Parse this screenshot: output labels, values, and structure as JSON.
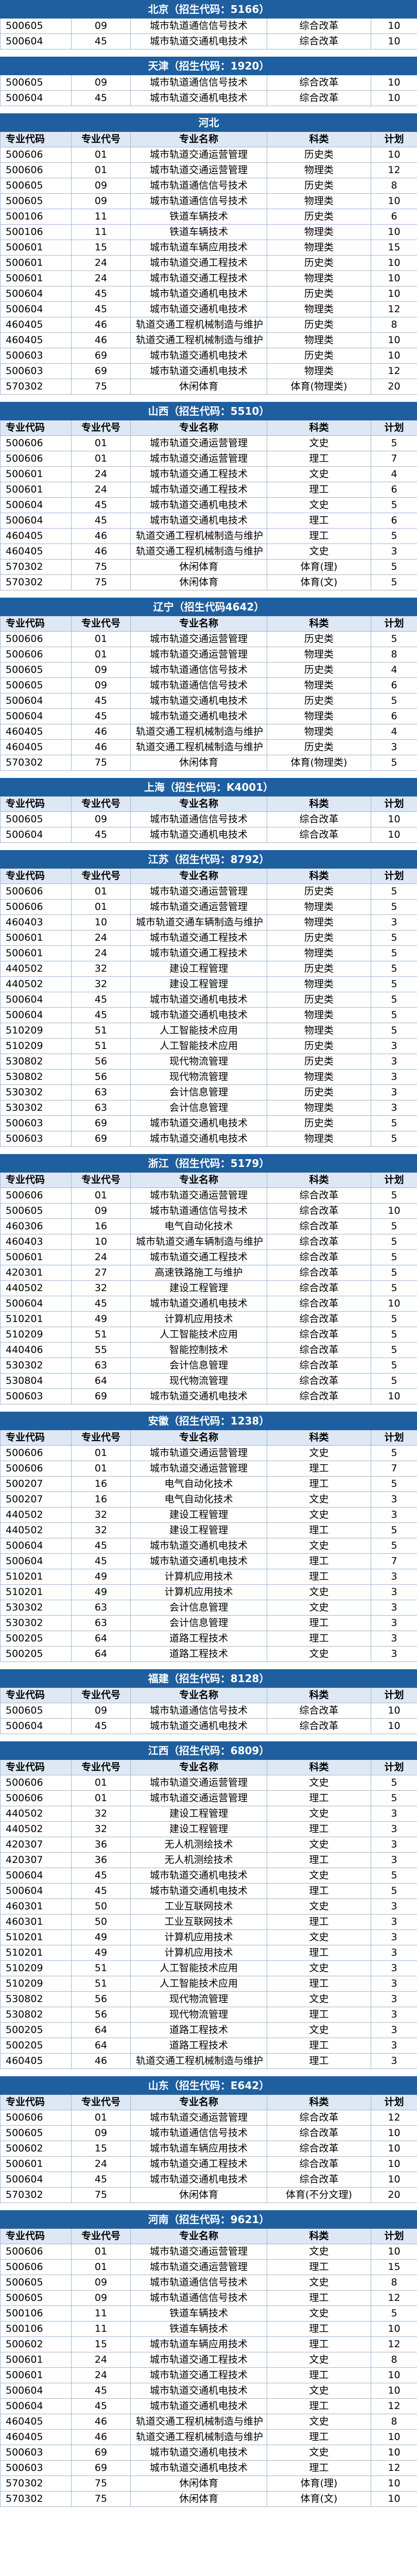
{
  "columns": [
    "专业代码",
    "专业代号",
    "专业名称",
    "科类",
    "计划"
  ],
  "sections": [
    {
      "title": "北京（招生代码：5166）",
      "header": false,
      "rows": [
        [
          "500605",
          "09",
          "城市轨道通信信号技术",
          "综合改革",
          "10"
        ],
        [
          "500604",
          "45",
          "城市轨道交通机电技术",
          "综合改革",
          "10"
        ]
      ]
    },
    {
      "title": "天津（招生代码：1920）",
      "header": false,
      "rows": [
        [
          "500605",
          "09",
          "城市轨道通信信号技术",
          "综合改革",
          "10"
        ],
        [
          "500604",
          "45",
          "城市轨道交通机电技术",
          "综合改革",
          "10"
        ]
      ]
    },
    {
      "title": "河北",
      "header": true,
      "rows": [
        [
          "500606",
          "01",
          "城市轨道交通运营管理",
          "历史类",
          "10"
        ],
        [
          "500606",
          "01",
          "城市轨道交通运营管理",
          "物理类",
          "12"
        ],
        [
          "500605",
          "09",
          "城市轨道通信信号技术",
          "历史类",
          "8"
        ],
        [
          "500605",
          "09",
          "城市轨道通信信号技术",
          "物理类",
          "10"
        ],
        [
          "500106",
          "11",
          "铁道车辆技术",
          "历史类",
          "6"
        ],
        [
          "500106",
          "11",
          "铁道车辆技术",
          "物理类",
          "10"
        ],
        [
          "500601",
          "15",
          "城市轨道车辆应用技术",
          "物理类",
          "15"
        ],
        [
          "500601",
          "24",
          "城市轨道交通工程技术",
          "历史类",
          "10"
        ],
        [
          "500601",
          "24",
          "城市轨道交通工程技术",
          "物理类",
          "10"
        ],
        [
          "500604",
          "45",
          "城市轨道交通机电技术",
          "历史类",
          "10"
        ],
        [
          "500604",
          "45",
          "城市轨道交通机电技术",
          "物理类",
          "12"
        ],
        [
          "460405",
          "46",
          "轨道交通工程机械制造与维护",
          "历史类",
          "8"
        ],
        [
          "460405",
          "46",
          "轨道交通工程机械制造与维护",
          "物理类",
          "10"
        ],
        [
          "500603",
          "69",
          "城市轨道交通机电技术",
          "历史类",
          "10"
        ],
        [
          "500603",
          "69",
          "城市轨道交通机电技术",
          "物理类",
          "12"
        ],
        [
          "570302",
          "75",
          "休闲体育",
          "体育(物理类)",
          "20"
        ]
      ]
    },
    {
      "title": "山西（招生代码：5510）",
      "header": true,
      "rows": [
        [
          "500606",
          "01",
          "城市轨道交通运营管理",
          "文史",
          "5"
        ],
        [
          "500606",
          "01",
          "城市轨道交通运营管理",
          "理工",
          "7"
        ],
        [
          "500601",
          "24",
          "城市轨道交通工程技术",
          "文史",
          "4"
        ],
        [
          "500601",
          "24",
          "城市轨道交通工程技术",
          "理工",
          "6"
        ],
        [
          "500604",
          "45",
          "城市轨道交通机电技术",
          "文史",
          "5"
        ],
        [
          "500604",
          "45",
          "城市轨道交通机电技术",
          "理工",
          "6"
        ],
        [
          "460405",
          "46",
          "轨道交通工程机械制造与维护",
          "理工",
          "5"
        ],
        [
          "460405",
          "46",
          "轨道交通工程机械制造与维护",
          "文史",
          "3"
        ],
        [
          "570302",
          "75",
          "休闲体育",
          "体育(理)",
          "5"
        ],
        [
          "570302",
          "75",
          "休闲体育",
          "体育(文)",
          "5"
        ]
      ]
    },
    {
      "title": "辽宁（招生代码4642）",
      "header": true,
      "rows": [
        [
          "500606",
          "01",
          "城市轨道交通运营管理",
          "历史类",
          "5"
        ],
        [
          "500606",
          "01",
          "城市轨道交通运营管理",
          "物理类",
          "8"
        ],
        [
          "500605",
          "09",
          "城市轨道通信信号技术",
          "历史类",
          "4"
        ],
        [
          "500605",
          "09",
          "城市轨道通信信号技术",
          "物理类",
          "6"
        ],
        [
          "500604",
          "45",
          "城市轨道交通机电技术",
          "历史类",
          "5"
        ],
        [
          "500604",
          "45",
          "城市轨道交通机电技术",
          "物理类",
          "6"
        ],
        [
          "460405",
          "46",
          "轨道交通工程机械制造与维护",
          "物理类",
          "4"
        ],
        [
          "460405",
          "46",
          "轨道交通工程机械制造与维护",
          "历史类",
          "3"
        ],
        [
          "570302",
          "75",
          "休闲体育",
          "体育(物理类)",
          "5"
        ]
      ]
    },
    {
      "title": "上海（招生代码：K4001）",
      "header": true,
      "rows": [
        [
          "500605",
          "09",
          "城市轨道通信信号技术",
          "综合改革",
          "10"
        ],
        [
          "500604",
          "45",
          "城市轨道交通机电技术",
          "综合改革",
          "10"
        ]
      ]
    },
    {
      "title": "江苏（招生代码：8792）",
      "header": true,
      "rows": [
        [
          "500606",
          "01",
          "城市轨道交通运营管理",
          "历史类",
          "5"
        ],
        [
          "500606",
          "01",
          "城市轨道交通运营管理",
          "物理类",
          "5"
        ],
        [
          "460403",
          "10",
          "城市轨道交通车辆制造与维护",
          "物理类",
          "3"
        ],
        [
          "500601",
          "24",
          "城市轨道交通工程技术",
          "历史类",
          "5"
        ],
        [
          "500601",
          "24",
          "城市轨道交通工程技术",
          "物理类",
          "5"
        ],
        [
          "440502",
          "32",
          "建设工程管理",
          "历史类",
          "5"
        ],
        [
          "440502",
          "32",
          "建设工程管理",
          "物理类",
          "5"
        ],
        [
          "500604",
          "45",
          "城市轨道交通机电技术",
          "历史类",
          "5"
        ],
        [
          "500604",
          "45",
          "城市轨道交通机电技术",
          "物理类",
          "5"
        ],
        [
          "510209",
          "51",
          "人工智能技术应用",
          "物理类",
          "5"
        ],
        [
          "510209",
          "51",
          "人工智能技术应用",
          "历史类",
          "3"
        ],
        [
          "530802",
          "56",
          "现代物流管理",
          "历史类",
          "3"
        ],
        [
          "530802",
          "56",
          "现代物流管理",
          "物理类",
          "3"
        ],
        [
          "530302",
          "63",
          "会计信息管理",
          "历史类",
          "3"
        ],
        [
          "530302",
          "63",
          "会计信息管理",
          "物理类",
          "3"
        ],
        [
          "500603",
          "69",
          "城市轨道交通机电技术",
          "历史类",
          "5"
        ],
        [
          "500603",
          "69",
          "城市轨道交通机电技术",
          "物理类",
          "5"
        ]
      ]
    },
    {
      "title": "浙江（招生代码：5179）",
      "header": true,
      "rows": [
        [
          "500606",
          "01",
          "城市轨道交通运营管理",
          "综合改革",
          "5"
        ],
        [
          "500605",
          "09",
          "城市轨道通信信号技术",
          "综合改革",
          "10"
        ],
        [
          "460306",
          "16",
          "电气自动化技术",
          "综合改革",
          "5"
        ],
        [
          "460403",
          "10",
          "城市轨道交通车辆制造与维护",
          "综合改革",
          "5"
        ],
        [
          "500601",
          "24",
          "城市轨道交通工程技术",
          "综合改革",
          "5"
        ],
        [
          "420301",
          "27",
          "高速铁路施工与维护",
          "综合改革",
          "5"
        ],
        [
          "440502",
          "32",
          "建设工程管理",
          "综合改革",
          "5"
        ],
        [
          "500604",
          "45",
          "城市轨道交通机电技术",
          "综合改革",
          "10"
        ],
        [
          "510201",
          "49",
          "计算机应用技术",
          "综合改革",
          "5"
        ],
        [
          "510209",
          "51",
          "人工智能技术应用",
          "综合改革",
          "5"
        ],
        [
          "440406",
          "55",
          "智能控制技术",
          "综合改革",
          "5"
        ],
        [
          "530302",
          "63",
          "会计信息管理",
          "综合改革",
          "5"
        ],
        [
          "530804",
          "64",
          "现代物流管理",
          "综合改革",
          "5"
        ],
        [
          "500603",
          "69",
          "城市轨道交通机电技术",
          "综合改革",
          "10"
        ]
      ]
    },
    {
      "title": "安徽（招生代码：1238）",
      "header": true,
      "rows": [
        [
          "500606",
          "01",
          "城市轨道交通运营管理",
          "文史",
          "5"
        ],
        [
          "500606",
          "01",
          "城市轨道交通运营管理",
          "理工",
          "7"
        ],
        [
          "500207",
          "16",
          "电气自动化技术",
          "理工",
          "5"
        ],
        [
          "500207",
          "16",
          "电气自动化技术",
          "文史",
          "3"
        ],
        [
          "440502",
          "32",
          "建设工程管理",
          "文史",
          "3"
        ],
        [
          "440502",
          "32",
          "建设工程管理",
          "理工",
          "5"
        ],
        [
          "500604",
          "45",
          "城市轨道交通机电技术",
          "文史",
          "5"
        ],
        [
          "500604",
          "45",
          "城市轨道交通机电技术",
          "理工",
          "7"
        ],
        [
          "510201",
          "49",
          "计算机应用技术",
          "理工",
          "3"
        ],
        [
          "510201",
          "49",
          "计算机应用技术",
          "文史",
          "3"
        ],
        [
          "530302",
          "63",
          "会计信息管理",
          "文史",
          "3"
        ],
        [
          "530302",
          "63",
          "会计信息管理",
          "理工",
          "3"
        ],
        [
          "500205",
          "64",
          "道路工程技术",
          "理工",
          "3"
        ],
        [
          "500205",
          "64",
          "道路工程技术",
          "文史",
          "3"
        ]
      ]
    },
    {
      "title": "福建（招生代码：8128）",
      "header": true,
      "rows": [
        [
          "500605",
          "09",
          "城市轨道通信信号技术",
          "综合改革",
          "10"
        ],
        [
          "500604",
          "45",
          "城市轨道交通机电技术",
          "综合改革",
          "10"
        ]
      ]
    },
    {
      "title": "江西（招生代码：6809）",
      "header": true,
      "rows": [
        [
          "500606",
          "01",
          "城市轨道交通运营管理",
          "文史",
          "5"
        ],
        [
          "500606",
          "01",
          "城市轨道交通运营管理",
          "理工",
          "5"
        ],
        [
          "440502",
          "32",
          "建设工程管理",
          "文史",
          "3"
        ],
        [
          "440502",
          "32",
          "建设工程管理",
          "理工",
          "3"
        ],
        [
          "420307",
          "36",
          "无人机测绘技术",
          "文史",
          "3"
        ],
        [
          "420307",
          "36",
          "无人机测绘技术",
          "理工",
          "3"
        ],
        [
          "500604",
          "45",
          "城市轨道交通机电技术",
          "文史",
          "5"
        ],
        [
          "500604",
          "45",
          "城市轨道交通机电技术",
          "理工",
          "5"
        ],
        [
          "460301",
          "50",
          "工业互联网技术",
          "文史",
          "3"
        ],
        [
          "460301",
          "50",
          "工业互联网技术",
          "理工",
          "3"
        ],
        [
          "510201",
          "49",
          "计算机应用技术",
          "文史",
          "3"
        ],
        [
          "510201",
          "49",
          "计算机应用技术",
          "理工",
          "3"
        ],
        [
          "510209",
          "51",
          "人工智能技术应用",
          "文史",
          "3"
        ],
        [
          "510209",
          "51",
          "人工智能技术应用",
          "理工",
          "3"
        ],
        [
          "530802",
          "56",
          "现代物流管理",
          "文史",
          "3"
        ],
        [
          "530802",
          "56",
          "现代物流管理",
          "理工",
          "3"
        ],
        [
          "500205",
          "64",
          "道路工程技术",
          "文史",
          "3"
        ],
        [
          "500205",
          "64",
          "道路工程技术",
          "理工",
          "3"
        ],
        [
          "460405",
          "46",
          "轨道交通工程机械制造与维护",
          "理工",
          "3"
        ]
      ]
    },
    {
      "title": "山东（招生代码：E642）",
      "header": true,
      "rows": [
        [
          "500606",
          "01",
          "城市轨道交通运营管理",
          "综合改革",
          "12"
        ],
        [
          "500605",
          "09",
          "城市轨道通信信号技术",
          "综合改革",
          "10"
        ],
        [
          "500602",
          "15",
          "城市轨道车辆应用技术",
          "综合改革",
          "10"
        ],
        [
          "500601",
          "24",
          "城市轨道交通工程技术",
          "综合改革",
          "10"
        ],
        [
          "500604",
          "45",
          "城市轨道交通机电技术",
          "综合改革",
          "10"
        ],
        [
          "570302",
          "75",
          "休闲体育",
          "体育(不分文理)",
          "20"
        ]
      ]
    },
    {
      "title": "河南（招生代码：9621）",
      "header": true,
      "rows": [
        [
          "500606",
          "01",
          "城市轨道交通运营管理",
          "文史",
          "10"
        ],
        [
          "500606",
          "01",
          "城市轨道交通运营管理",
          "理工",
          "15"
        ],
        [
          "500605",
          "09",
          "城市轨道通信信号技术",
          "文史",
          "8"
        ],
        [
          "500605",
          "09",
          "城市轨道通信信号技术",
          "理工",
          "12"
        ],
        [
          "500106",
          "11",
          "铁道车辆技术",
          "文史",
          "5"
        ],
        [
          "500106",
          "11",
          "铁道车辆技术",
          "理工",
          "10"
        ],
        [
          "500602",
          "15",
          "城市轨道车辆应用技术",
          "理工",
          "12"
        ],
        [
          "500601",
          "24",
          "城市轨道交通工程技术",
          "文史",
          "8"
        ],
        [
          "500601",
          "24",
          "城市轨道交通工程技术",
          "理工",
          "10"
        ],
        [
          "500604",
          "45",
          "城市轨道交通机电技术",
          "文史",
          "10"
        ],
        [
          "500604",
          "45",
          "城市轨道交通机电技术",
          "理工",
          "12"
        ],
        [
          "460405",
          "46",
          "轨道交通工程机械制造与维护",
          "文史",
          "8"
        ],
        [
          "460405",
          "46",
          "轨道交通工程机械制造与维护",
          "理工",
          "10"
        ],
        [
          "500603",
          "69",
          "城市轨道交通机电技术",
          "文史",
          "10"
        ],
        [
          "500603",
          "69",
          "城市轨道交通机电技术",
          "理工",
          "12"
        ],
        [
          "570302",
          "75",
          "休闲体育",
          "体育(理)",
          "10"
        ],
        [
          "570302",
          "75",
          "休闲体育",
          "体育(文)",
          "10"
        ]
      ]
    }
  ]
}
